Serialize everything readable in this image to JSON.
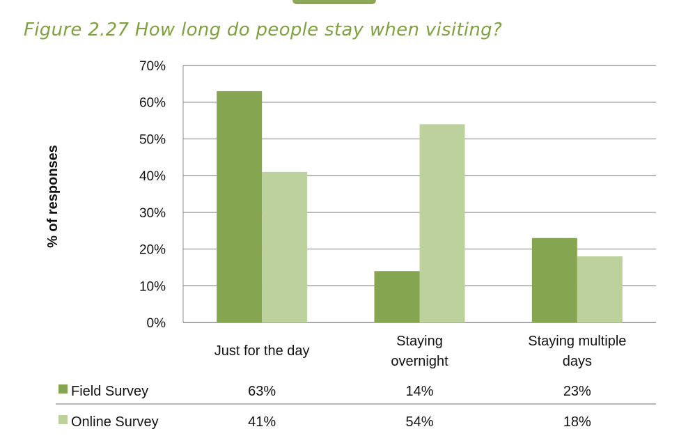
{
  "figure_title": "Figure 2.27 How long do people stay when visiting?",
  "colors": {
    "title": "#7fa23e",
    "field": "#86a551",
    "online": "#bcd19b",
    "grid": "#8c8c8c"
  },
  "chart_data": {
    "type": "bar",
    "title": "",
    "xlabel": "",
    "ylabel": "% of responses",
    "ylim": [
      0,
      70
    ],
    "y_ticks": [
      0,
      10,
      20,
      30,
      40,
      50,
      60,
      70
    ],
    "y_tick_labels": [
      "0%",
      "10%",
      "20%",
      "30%",
      "40%",
      "50%",
      "60%",
      "70%"
    ],
    "grid": true,
    "categories": [
      [
        "Just for the day"
      ],
      [
        "Staying",
        "overnight"
      ],
      [
        "Staying multiple",
        "days"
      ]
    ],
    "series": [
      {
        "name": "Field Survey",
        "values": [
          63,
          14,
          23
        ],
        "labels": [
          "63%",
          "14%",
          "23%"
        ]
      },
      {
        "name": "Online Survey",
        "values": [
          41,
          54,
          18
        ],
        "labels": [
          "41%",
          "54%",
          "18%"
        ]
      }
    ]
  }
}
